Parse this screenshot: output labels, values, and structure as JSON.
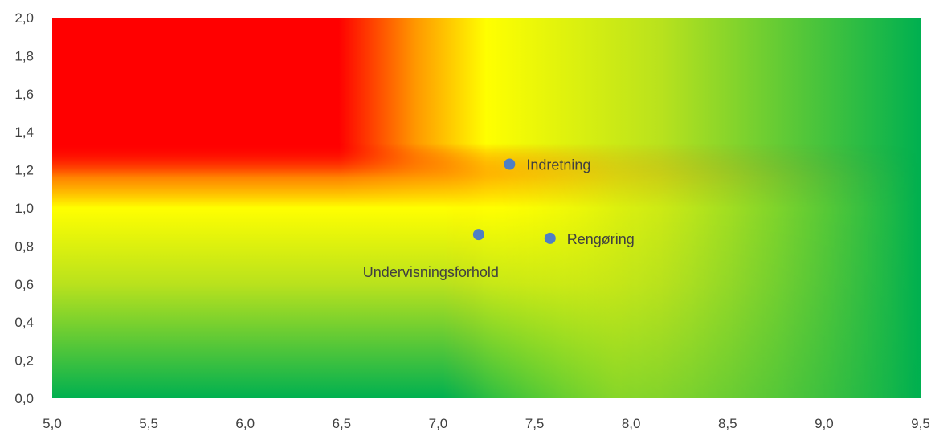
{
  "chart_data": {
    "type": "scatter",
    "title": "",
    "xlabel": "",
    "ylabel": "",
    "xlim": [
      5.0,
      9.5
    ],
    "ylim": [
      0.0,
      2.0
    ],
    "x_ticks": [
      "5,0",
      "5,5",
      "6,0",
      "6,5",
      "7,0",
      "7,5",
      "8,0",
      "8,5",
      "9,0",
      "9,5"
    ],
    "y_ticks": [
      "0,0",
      "0,2",
      "0,4",
      "0,6",
      "0,8",
      "1,0",
      "1,2",
      "1,4",
      "1,6",
      "1,8",
      "2,0"
    ],
    "points": [
      {
        "label": "Indretning",
        "x": 7.37,
        "y": 1.23,
        "label_side": "right"
      },
      {
        "label": "Rengøring",
        "x": 7.58,
        "y": 0.84,
        "label_side": "right"
      },
      {
        "label": "Undervisningsforhold",
        "x": 7.21,
        "y": 0.86,
        "label_side": "below-left"
      }
    ],
    "point_color": "#4f7fc4",
    "background": "red-yellow-green gradient (red top-left, green right and bottom)",
    "gradient_colors": {
      "red": "#ff0000",
      "orange": "#ff9a00",
      "yellow": "#ffff00",
      "yellow_green": "#b9e21d",
      "green": "#00b050"
    },
    "grid": false,
    "legend": "none"
  }
}
